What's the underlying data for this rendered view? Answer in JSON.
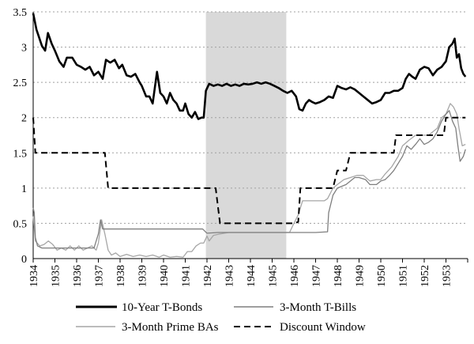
{
  "chart_data": {
    "type": "line",
    "title": "",
    "xlabel": "",
    "ylabel": "",
    "xlim": [
      1934,
      1954
    ],
    "ylim": [
      0,
      3.5
    ],
    "x_ticks": [
      "1934",
      "1935",
      "1936",
      "1937",
      "1938",
      "1939",
      "1940",
      "1941",
      "1942",
      "1943",
      "1944",
      "1945",
      "1946",
      "1947",
      "1948",
      "1949",
      "1950",
      "1951",
      "1952",
      "1953"
    ],
    "y_ticks": [
      "0",
      "0.5",
      "1",
      "1.5",
      "2",
      "2.5",
      "3",
      "3.5"
    ],
    "grid": "horizontal-dashed",
    "legend_placement": "bottom",
    "shaded_region": {
      "x": [
        1941.95,
        1945.65
      ],
      "color": "#d9d9d9"
    },
    "series": [
      {
        "name": "10-Year T-Bonds",
        "color": "#000000",
        "style": "solid-thick",
        "points": [
          [
            1934.0,
            3.48
          ],
          [
            1934.15,
            3.25
          ],
          [
            1934.4,
            3.02
          ],
          [
            1934.55,
            2.95
          ],
          [
            1934.68,
            3.2
          ],
          [
            1934.85,
            3.05
          ],
          [
            1935.0,
            2.95
          ],
          [
            1935.2,
            2.8
          ],
          [
            1935.4,
            2.72
          ],
          [
            1935.55,
            2.85
          ],
          [
            1935.8,
            2.85
          ],
          [
            1936.0,
            2.75
          ],
          [
            1936.2,
            2.72
          ],
          [
            1936.4,
            2.68
          ],
          [
            1936.6,
            2.72
          ],
          [
            1936.8,
            2.6
          ],
          [
            1937.0,
            2.65
          ],
          [
            1937.2,
            2.55
          ],
          [
            1937.35,
            2.82
          ],
          [
            1937.55,
            2.78
          ],
          [
            1937.75,
            2.82
          ],
          [
            1937.95,
            2.7
          ],
          [
            1938.1,
            2.75
          ],
          [
            1938.3,
            2.6
          ],
          [
            1938.5,
            2.58
          ],
          [
            1938.7,
            2.62
          ],
          [
            1938.9,
            2.5
          ],
          [
            1939.0,
            2.45
          ],
          [
            1939.2,
            2.3
          ],
          [
            1939.35,
            2.3
          ],
          [
            1939.5,
            2.2
          ],
          [
            1939.7,
            2.65
          ],
          [
            1939.85,
            2.35
          ],
          [
            1940.0,
            2.3
          ],
          [
            1940.15,
            2.2
          ],
          [
            1940.3,
            2.35
          ],
          [
            1940.45,
            2.25
          ],
          [
            1940.6,
            2.2
          ],
          [
            1940.75,
            2.1
          ],
          [
            1940.9,
            2.1
          ],
          [
            1941.0,
            2.2
          ],
          [
            1941.15,
            2.05
          ],
          [
            1941.3,
            2.0
          ],
          [
            1941.45,
            2.08
          ],
          [
            1941.6,
            1.98
          ],
          [
            1941.75,
            2.0
          ],
          [
            1941.85,
            2.0
          ],
          [
            1941.95,
            2.38
          ],
          [
            1942.1,
            2.48
          ],
          [
            1942.3,
            2.45
          ],
          [
            1942.5,
            2.47
          ],
          [
            1942.7,
            2.45
          ],
          [
            1942.9,
            2.48
          ],
          [
            1943.1,
            2.45
          ],
          [
            1943.3,
            2.47
          ],
          [
            1943.5,
            2.45
          ],
          [
            1943.7,
            2.48
          ],
          [
            1943.9,
            2.47
          ],
          [
            1944.1,
            2.48
          ],
          [
            1944.3,
            2.5
          ],
          [
            1944.5,
            2.48
          ],
          [
            1944.7,
            2.5
          ],
          [
            1944.9,
            2.48
          ],
          [
            1945.1,
            2.45
          ],
          [
            1945.3,
            2.42
          ],
          [
            1945.5,
            2.38
          ],
          [
            1945.7,
            2.35
          ],
          [
            1945.9,
            2.38
          ],
          [
            1946.1,
            2.3
          ],
          [
            1946.25,
            2.12
          ],
          [
            1946.4,
            2.1
          ],
          [
            1946.55,
            2.2
          ],
          [
            1946.7,
            2.25
          ],
          [
            1946.85,
            2.22
          ],
          [
            1947.0,
            2.2
          ],
          [
            1947.2,
            2.22
          ],
          [
            1947.4,
            2.25
          ],
          [
            1947.6,
            2.3
          ],
          [
            1947.8,
            2.28
          ],
          [
            1948.0,
            2.45
          ],
          [
            1948.2,
            2.42
          ],
          [
            1948.4,
            2.4
          ],
          [
            1948.6,
            2.43
          ],
          [
            1948.8,
            2.4
          ],
          [
            1949.0,
            2.35
          ],
          [
            1949.2,
            2.3
          ],
          [
            1949.4,
            2.25
          ],
          [
            1949.6,
            2.2
          ],
          [
            1949.8,
            2.22
          ],
          [
            1950.0,
            2.25
          ],
          [
            1950.2,
            2.35
          ],
          [
            1950.4,
            2.35
          ],
          [
            1950.6,
            2.38
          ],
          [
            1950.8,
            2.38
          ],
          [
            1951.0,
            2.42
          ],
          [
            1951.15,
            2.55
          ],
          [
            1951.3,
            2.62
          ],
          [
            1951.45,
            2.58
          ],
          [
            1951.6,
            2.55
          ],
          [
            1951.8,
            2.68
          ],
          [
            1952.0,
            2.72
          ],
          [
            1952.2,
            2.7
          ],
          [
            1952.4,
            2.6
          ],
          [
            1952.6,
            2.68
          ],
          [
            1952.8,
            2.72
          ],
          [
            1953.0,
            2.8
          ],
          [
            1953.15,
            3.0
          ],
          [
            1953.3,
            3.05
          ],
          [
            1953.4,
            3.12
          ],
          [
            1953.5,
            2.85
          ],
          [
            1953.6,
            2.9
          ],
          [
            1953.7,
            2.7
          ],
          [
            1953.8,
            2.62
          ],
          [
            1953.9,
            2.58
          ]
        ]
      },
      {
        "name": "3-Month T-Bills",
        "color": "#7f7f7f",
        "style": "solid",
        "points": [
          [
            1934.0,
            0.72
          ],
          [
            1934.05,
            0.65
          ],
          [
            1934.1,
            0.3
          ],
          [
            1934.2,
            0.18
          ],
          [
            1934.4,
            0.15
          ],
          [
            1934.6,
            0.15
          ],
          [
            1934.8,
            0.15
          ],
          [
            1935.0,
            0.15
          ],
          [
            1935.3,
            0.15
          ],
          [
            1935.6,
            0.15
          ],
          [
            1935.9,
            0.15
          ],
          [
            1936.2,
            0.15
          ],
          [
            1936.5,
            0.15
          ],
          [
            1936.8,
            0.15
          ],
          [
            1937.0,
            0.35
          ],
          [
            1937.1,
            0.55
          ],
          [
            1937.2,
            0.42
          ],
          [
            1937.3,
            0.42
          ],
          [
            1937.4,
            0.42
          ],
          [
            1938.0,
            0.42
          ],
          [
            1939.0,
            0.42
          ],
          [
            1940.0,
            0.42
          ],
          [
            1941.0,
            0.42
          ],
          [
            1941.8,
            0.42
          ],
          [
            1942.0,
            0.36
          ],
          [
            1942.5,
            0.37
          ],
          [
            1943.0,
            0.37
          ],
          [
            1944.0,
            0.37
          ],
          [
            1945.0,
            0.37
          ],
          [
            1946.0,
            0.37
          ],
          [
            1947.0,
            0.37
          ],
          [
            1947.55,
            0.38
          ],
          [
            1947.6,
            0.65
          ],
          [
            1947.8,
            0.9
          ],
          [
            1948.0,
            1.0
          ],
          [
            1948.4,
            1.05
          ],
          [
            1948.8,
            1.15
          ],
          [
            1949.0,
            1.15
          ],
          [
            1949.3,
            1.12
          ],
          [
            1949.5,
            1.05
          ],
          [
            1949.8,
            1.05
          ],
          [
            1950.0,
            1.1
          ],
          [
            1950.2,
            1.12
          ],
          [
            1950.4,
            1.18
          ],
          [
            1950.6,
            1.25
          ],
          [
            1950.8,
            1.35
          ],
          [
            1951.0,
            1.45
          ],
          [
            1951.2,
            1.6
          ],
          [
            1951.4,
            1.55
          ],
          [
            1951.6,
            1.62
          ],
          [
            1951.8,
            1.7
          ],
          [
            1952.0,
            1.62
          ],
          [
            1952.2,
            1.65
          ],
          [
            1952.4,
            1.7
          ],
          [
            1952.6,
            1.8
          ],
          [
            1952.8,
            1.95
          ],
          [
            1953.0,
            2.05
          ],
          [
            1953.15,
            2.1
          ],
          [
            1953.3,
            1.95
          ],
          [
            1953.45,
            1.85
          ],
          [
            1953.55,
            1.6
          ],
          [
            1953.65,
            1.38
          ],
          [
            1953.8,
            1.45
          ],
          [
            1953.9,
            1.55
          ]
        ]
      },
      {
        "name": "3-Month Prime BAs",
        "color": "#a6a6a6",
        "style": "solid",
        "points": [
          [
            1934.0,
            0.6
          ],
          [
            1934.1,
            0.25
          ],
          [
            1934.3,
            0.18
          ],
          [
            1934.5,
            0.2
          ],
          [
            1934.7,
            0.25
          ],
          [
            1934.9,
            0.2
          ],
          [
            1935.1,
            0.12
          ],
          [
            1935.3,
            0.15
          ],
          [
            1935.5,
            0.12
          ],
          [
            1935.7,
            0.18
          ],
          [
            1935.9,
            0.12
          ],
          [
            1936.1,
            0.18
          ],
          [
            1936.3,
            0.12
          ],
          [
            1936.5,
            0.15
          ],
          [
            1936.7,
            0.18
          ],
          [
            1936.9,
            0.12
          ],
          [
            1937.0,
            0.22
          ],
          [
            1937.15,
            0.55
          ],
          [
            1937.3,
            0.35
          ],
          [
            1937.45,
            0.12
          ],
          [
            1937.6,
            0.05
          ],
          [
            1937.8,
            0.08
          ],
          [
            1938.0,
            0.03
          ],
          [
            1938.3,
            0.06
          ],
          [
            1938.6,
            0.03
          ],
          [
            1938.9,
            0.05
          ],
          [
            1939.2,
            0.03
          ],
          [
            1939.5,
            0.05
          ],
          [
            1939.8,
            0.02
          ],
          [
            1940.0,
            0.05
          ],
          [
            1940.3,
            0.02
          ],
          [
            1940.6,
            0.03
          ],
          [
            1940.9,
            0.02
          ],
          [
            1941.1,
            0.1
          ],
          [
            1941.3,
            0.1
          ],
          [
            1941.5,
            0.18
          ],
          [
            1941.7,
            0.22
          ],
          [
            1941.85,
            0.22
          ],
          [
            1942.0,
            0.32
          ],
          [
            1942.1,
            0.25
          ],
          [
            1942.3,
            0.33
          ],
          [
            1942.6,
            0.35
          ],
          [
            1943.0,
            0.37
          ],
          [
            1944.0,
            0.37
          ],
          [
            1945.0,
            0.37
          ],
          [
            1945.8,
            0.37
          ],
          [
            1946.0,
            0.5
          ],
          [
            1946.2,
            0.62
          ],
          [
            1946.4,
            0.82
          ],
          [
            1946.6,
            0.82
          ],
          [
            1947.0,
            0.82
          ],
          [
            1947.4,
            0.82
          ],
          [
            1947.55,
            0.85
          ],
          [
            1947.8,
            1.0
          ],
          [
            1948.0,
            1.05
          ],
          [
            1948.3,
            1.12
          ],
          [
            1948.6,
            1.15
          ],
          [
            1948.9,
            1.18
          ],
          [
            1949.2,
            1.18
          ],
          [
            1949.5,
            1.1
          ],
          [
            1949.8,
            1.12
          ],
          [
            1950.0,
            1.12
          ],
          [
            1950.2,
            1.2
          ],
          [
            1950.5,
            1.3
          ],
          [
            1950.8,
            1.45
          ],
          [
            1951.0,
            1.6
          ],
          [
            1951.3,
            1.68
          ],
          [
            1951.6,
            1.75
          ],
          [
            1951.9,
            1.75
          ],
          [
            1952.2,
            1.75
          ],
          [
            1952.6,
            1.85
          ],
          [
            1952.8,
            2.0
          ],
          [
            1953.0,
            2.05
          ],
          [
            1953.2,
            2.2
          ],
          [
            1953.35,
            2.15
          ],
          [
            1953.5,
            2.05
          ],
          [
            1953.6,
            1.85
          ],
          [
            1953.75,
            1.6
          ],
          [
            1953.9,
            1.62
          ]
        ]
      },
      {
        "name": "Discount Window",
        "color": "#000000",
        "style": "dashed",
        "points": [
          [
            1934.0,
            2.0
          ],
          [
            1934.1,
            1.5
          ],
          [
            1937.3,
            1.5
          ],
          [
            1937.45,
            1.0
          ],
          [
            1941.0,
            1.0
          ],
          [
            1942.0,
            1.0
          ],
          [
            1942.4,
            1.0
          ],
          [
            1942.6,
            0.5
          ],
          [
            1943.0,
            0.5
          ],
          [
            1944.0,
            0.5
          ],
          [
            1945.0,
            0.5
          ],
          [
            1946.0,
            0.5
          ],
          [
            1946.2,
            0.52
          ],
          [
            1946.3,
            1.0
          ],
          [
            1947.0,
            1.0
          ],
          [
            1947.8,
            1.0
          ],
          [
            1948.0,
            1.25
          ],
          [
            1948.4,
            1.25
          ],
          [
            1948.6,
            1.5
          ],
          [
            1949.0,
            1.5
          ],
          [
            1950.0,
            1.5
          ],
          [
            1950.6,
            1.5
          ],
          [
            1950.7,
            1.75
          ],
          [
            1951.0,
            1.75
          ],
          [
            1952.0,
            1.75
          ],
          [
            1952.9,
            1.75
          ],
          [
            1953.0,
            2.0
          ],
          [
            1953.9,
            2.0
          ]
        ]
      }
    ]
  }
}
